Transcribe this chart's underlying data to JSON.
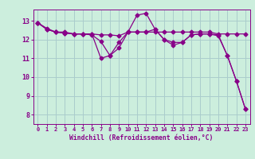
{
  "background_color": "#cceedd",
  "grid_color": "#aacccc",
  "line_color": "#880088",
  "xlabel": "Windchill (Refroidissement éolien,°C)",
  "xlabel_color": "#880088",
  "tick_color": "#880088",
  "ylim": [
    7.5,
    13.6
  ],
  "xlim": [
    -0.5,
    23.5
  ],
  "yticks": [
    8,
    9,
    10,
    11,
    12,
    13
  ],
  "xticks": [
    0,
    1,
    2,
    3,
    4,
    5,
    6,
    7,
    8,
    9,
    10,
    11,
    12,
    13,
    14,
    15,
    16,
    17,
    18,
    19,
    20,
    21,
    22,
    23
  ],
  "line1_x": [
    0,
    1,
    2,
    3,
    4,
    5,
    6,
    7,
    8,
    9,
    10,
    11,
    12,
    13,
    14,
    15,
    16,
    17,
    18,
    19,
    20,
    21,
    22,
    23
  ],
  "line1_y": [
    12.9,
    12.6,
    12.4,
    12.4,
    12.3,
    12.3,
    12.3,
    11.0,
    11.15,
    11.85,
    12.4,
    13.3,
    13.4,
    12.55,
    12.0,
    11.7,
    11.85,
    12.25,
    12.3,
    12.3,
    12.2,
    11.15,
    9.8,
    8.3
  ],
  "line2_x": [
    0,
    1,
    2,
    3,
    4,
    5,
    6,
    7,
    8,
    9,
    10,
    11,
    12,
    13,
    14,
    15,
    16,
    17,
    18,
    19,
    20,
    21,
    22,
    23
  ],
  "line2_y": [
    12.9,
    12.55,
    12.4,
    12.35,
    12.3,
    12.3,
    12.3,
    12.25,
    12.25,
    12.2,
    12.4,
    12.4,
    12.4,
    12.4,
    12.4,
    12.4,
    12.4,
    12.4,
    12.4,
    12.4,
    12.3,
    12.3,
    12.3,
    12.3
  ],
  "line3_x": [
    0,
    1,
    2,
    3,
    4,
    5,
    6,
    7,
    8,
    9,
    10,
    11,
    12,
    13,
    14,
    15,
    16,
    17,
    18,
    19,
    20,
    21,
    22,
    23
  ],
  "line3_y": [
    12.9,
    12.55,
    12.4,
    12.35,
    12.3,
    12.3,
    12.25,
    11.9,
    11.15,
    11.55,
    12.4,
    12.4,
    12.4,
    12.55,
    12.0,
    11.85,
    11.85,
    12.25,
    12.3,
    12.3,
    12.25,
    11.15,
    9.8,
    8.3
  ]
}
